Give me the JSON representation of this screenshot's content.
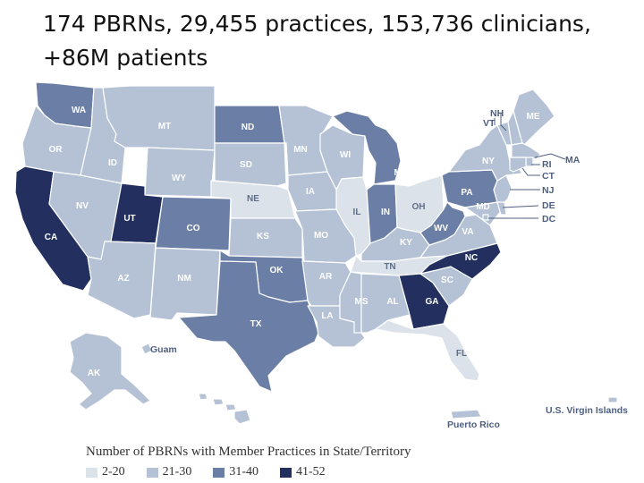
{
  "title": {
    "line1": "174 PBRNs, 29,455 practices, 153,736 clinicians,",
    "line2": "+86M patients"
  },
  "colors": {
    "tier1": "#dce2ea",
    "tier2": "#b5c2d5",
    "tier3": "#6b7fa6",
    "tier4": "#23305f",
    "border": "#ffffff"
  },
  "legend": {
    "title": "Number of PBRNs with Member Practices in State/Territory",
    "items": [
      {
        "label": "2-20",
        "tier": "tier1"
      },
      {
        "label": "21-30",
        "tier": "tier2"
      },
      {
        "label": "31-40",
        "tier": "tier3"
      },
      {
        "label": "41-52",
        "tier": "tier4"
      }
    ]
  },
  "states": [
    {
      "abbr": "WA",
      "tier": "tier3"
    },
    {
      "abbr": "OR",
      "tier": "tier2"
    },
    {
      "abbr": "CA",
      "tier": "tier4"
    },
    {
      "abbr": "ID",
      "tier": "tier2"
    },
    {
      "abbr": "NV",
      "tier": "tier2"
    },
    {
      "abbr": "MT",
      "tier": "tier2"
    },
    {
      "abbr": "WY",
      "tier": "tier2"
    },
    {
      "abbr": "UT",
      "tier": "tier4"
    },
    {
      "abbr": "AZ",
      "tier": "tier2"
    },
    {
      "abbr": "CO",
      "tier": "tier3"
    },
    {
      "abbr": "NM",
      "tier": "tier2"
    },
    {
      "abbr": "ND",
      "tier": "tier3"
    },
    {
      "abbr": "SD",
      "tier": "tier2"
    },
    {
      "abbr": "NE",
      "tier": "tier1"
    },
    {
      "abbr": "KS",
      "tier": "tier2"
    },
    {
      "abbr": "OK",
      "tier": "tier3"
    },
    {
      "abbr": "TX",
      "tier": "tier3"
    },
    {
      "abbr": "MN",
      "tier": "tier2"
    },
    {
      "abbr": "IA",
      "tier": "tier2"
    },
    {
      "abbr": "MO",
      "tier": "tier2"
    },
    {
      "abbr": "AR",
      "tier": "tier2"
    },
    {
      "abbr": "LA",
      "tier": "tier2"
    },
    {
      "abbr": "WI",
      "tier": "tier2"
    },
    {
      "abbr": "IL",
      "tier": "tier1"
    },
    {
      "abbr": "MI",
      "tier": "tier3"
    },
    {
      "abbr": "IN",
      "tier": "tier3"
    },
    {
      "abbr": "OH",
      "tier": "tier1"
    },
    {
      "abbr": "KY",
      "tier": "tier2"
    },
    {
      "abbr": "TN",
      "tier": "tier1"
    },
    {
      "abbr": "MS",
      "tier": "tier2"
    },
    {
      "abbr": "AL",
      "tier": "tier2"
    },
    {
      "abbr": "GA",
      "tier": "tier4"
    },
    {
      "abbr": "FL",
      "tier": "tier1"
    },
    {
      "abbr": "SC",
      "tier": "tier2"
    },
    {
      "abbr": "NC",
      "tier": "tier4"
    },
    {
      "abbr": "VA",
      "tier": "tier2"
    },
    {
      "abbr": "WV",
      "tier": "tier3"
    },
    {
      "abbr": "PA",
      "tier": "tier3"
    },
    {
      "abbr": "NY",
      "tier": "tier2"
    },
    {
      "abbr": "VT",
      "tier": "tier2"
    },
    {
      "abbr": "NH",
      "tier": "tier2"
    },
    {
      "abbr": "ME",
      "tier": "tier2"
    },
    {
      "abbr": "MA",
      "tier": "tier2"
    },
    {
      "abbr": "RI",
      "tier": "tier2"
    },
    {
      "abbr": "CT",
      "tier": "tier2"
    },
    {
      "abbr": "NJ",
      "tier": "tier2"
    },
    {
      "abbr": "DE",
      "tier": "tier2"
    },
    {
      "abbr": "MD",
      "tier": "tier2"
    },
    {
      "abbr": "DC",
      "tier": "tier2"
    },
    {
      "abbr": "AK",
      "tier": "tier2"
    },
    {
      "abbr": "HI",
      "tier": "tier2"
    }
  ],
  "territories": [
    {
      "name": "Guam",
      "tier": "tier2"
    },
    {
      "name": "Puerto Rico",
      "tier": "tier2"
    },
    {
      "name": "U.S. Virgin Islands",
      "tier": "tier2"
    }
  ]
}
